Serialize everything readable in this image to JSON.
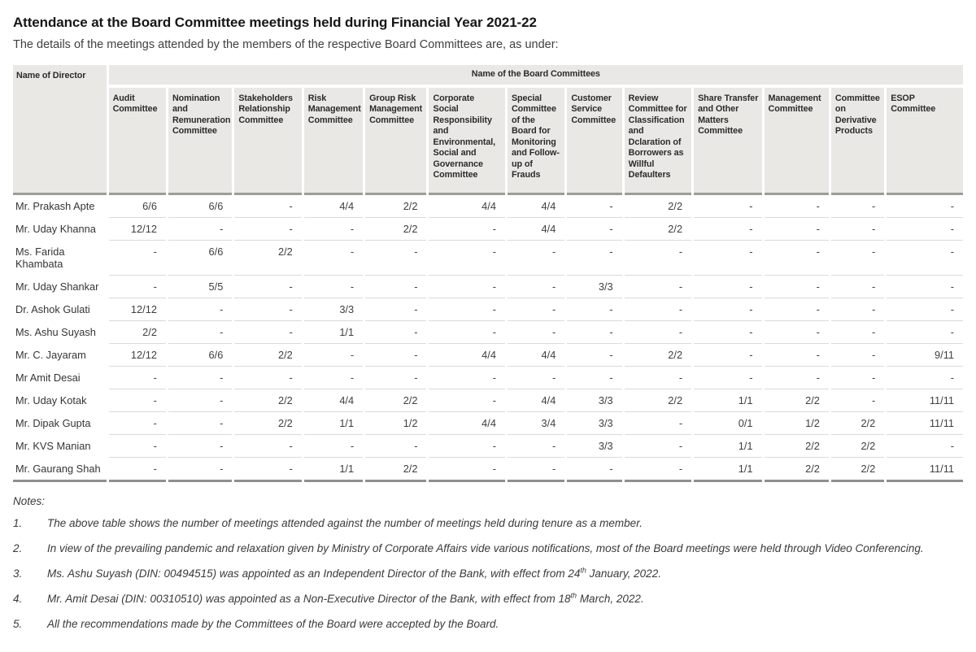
{
  "page": {
    "title": "Attendance at the Board Committee meetings held during Financial Year 2021-22",
    "subtitle": "The details of the meetings attended by the members of the respective Board Committees are, as under:"
  },
  "table": {
    "director_column_header": "Name of Director",
    "committees_group_header": "Name of the Board Committees",
    "committees": [
      "Audit Committee",
      "Nomination and Remuneration Committee",
      "Stakeholders Relationship Committee",
      "Risk Management Committee",
      "Group Risk Management Committee",
      "Corporate Social Responsibility and Environmental, Social and Governance Committee",
      "Special Committee of the Board for Monitoring and Follow-up of Frauds",
      "Customer Service Committee",
      "Review Committee for Classification and Dclaration of Borrowers as Willful Defaulters",
      "Share Transfer and Other Matters Committee",
      "Management Committee",
      "Committee on Derivative Products",
      "ESOP Committee"
    ],
    "rows": [
      {
        "director": "Mr. Prakash Apte",
        "attendance": [
          "6/6",
          "6/6",
          "-",
          "4/4",
          "2/2",
          "4/4",
          "4/4",
          "-",
          "2/2",
          "-",
          "-",
          "-",
          "-"
        ]
      },
      {
        "director": "Mr. Uday Khanna",
        "attendance": [
          "12/12",
          "-",
          "-",
          "-",
          "2/2",
          "-",
          "4/4",
          "-",
          "2/2",
          "-",
          "-",
          "-",
          "-"
        ]
      },
      {
        "director": "Ms. Farida Khambata",
        "attendance": [
          "-",
          "6/6",
          "2/2",
          "-",
          "-",
          "-",
          "-",
          "-",
          "-",
          "-",
          "-",
          "-",
          "-"
        ]
      },
      {
        "director": "Mr. Uday Shankar",
        "attendance": [
          "-",
          "5/5",
          "-",
          "-",
          "-",
          "-",
          "-",
          "3/3",
          "-",
          "-",
          "-",
          "-",
          "-"
        ]
      },
      {
        "director": "Dr. Ashok Gulati",
        "attendance": [
          "12/12",
          "-",
          "-",
          "3/3",
          "-",
          "-",
          "-",
          "-",
          "-",
          "-",
          "-",
          "-",
          "-"
        ]
      },
      {
        "director": "Ms. Ashu Suyash",
        "attendance": [
          "2/2",
          "-",
          "-",
          "1/1",
          "-",
          "-",
          "-",
          "-",
          "-",
          "-",
          "-",
          "-",
          "-"
        ]
      },
      {
        "director": "Mr. C. Jayaram",
        "attendance": [
          "12/12",
          "6/6",
          "2/2",
          "-",
          "-",
          "4/4",
          "4/4",
          "-",
          "2/2",
          "-",
          "-",
          "-",
          "9/11"
        ]
      },
      {
        "director": "Mr Amit Desai",
        "attendance": [
          "-",
          "-",
          "-",
          "-",
          "-",
          "-",
          "-",
          "-",
          "-",
          "-",
          "-",
          "-",
          "-"
        ]
      },
      {
        "director": "Mr. Uday Kotak",
        "attendance": [
          "-",
          "-",
          "2/2",
          "4/4",
          "2/2",
          "-",
          "4/4",
          "3/3",
          "2/2",
          "1/1",
          "2/2",
          "-",
          "11/11"
        ]
      },
      {
        "director": "Mr. Dipak Gupta",
        "attendance": [
          "-",
          "-",
          "2/2",
          "1/1",
          "1/2",
          "4/4",
          "3/4",
          "3/3",
          "-",
          "0/1",
          "1/2",
          "2/2",
          "11/11"
        ]
      },
      {
        "director": "Mr. KVS Manian",
        "attendance": [
          "-",
          "-",
          "-",
          "-",
          "-",
          "-",
          "-",
          "3/3",
          "-",
          "1/1",
          "2/2",
          "2/2",
          "-"
        ]
      },
      {
        "director": "Mr. Gaurang Shah",
        "attendance": [
          "-",
          "-",
          "-",
          "1/1",
          "2/2",
          "-",
          "-",
          "-",
          "-",
          "1/1",
          "2/2",
          "2/2",
          "11/11"
        ]
      }
    ]
  },
  "notes": {
    "heading": "Notes:",
    "items": [
      {
        "num": "1.",
        "segments": [
          {
            "text": "The above table shows the number of meetings attended against the number of meetings held during tenure as a member."
          }
        ]
      },
      {
        "num": "2.",
        "segments": [
          {
            "text": "In view of the prevailing pandemic and relaxation given by Ministry of Corporate Affairs vide various notifications, most of the Board meetings were held through Video Conferencing."
          }
        ]
      },
      {
        "num": "3.",
        "segments": [
          {
            "text": "Ms. Ashu Suyash (DIN: 00494515) was appointed as an Independent Director of the Bank, with effect from 24"
          },
          {
            "sup": "th"
          },
          {
            "text": " January, 2022."
          }
        ]
      },
      {
        "num": "4.",
        "segments": [
          {
            "text": "Mr. Amit Desai (DIN: 00310510) was appointed as a Non-Executive Director of the Bank, with effect from 18"
          },
          {
            "sup": "th"
          },
          {
            "text": " March, 2022."
          }
        ]
      },
      {
        "num": "5.",
        "segments": [
          {
            "text": "All the recommendations made by the Committees of the Board were accepted by the Board."
          }
        ]
      }
    ]
  },
  "colors": {
    "header_background": "#e9e8e5",
    "header_thick_border": "#9c9c99",
    "row_divider": "#dbdad7",
    "table_bottom_border": "#8f8f8c",
    "title_text": "#161616",
    "body_text": "#3a3a3a"
  }
}
